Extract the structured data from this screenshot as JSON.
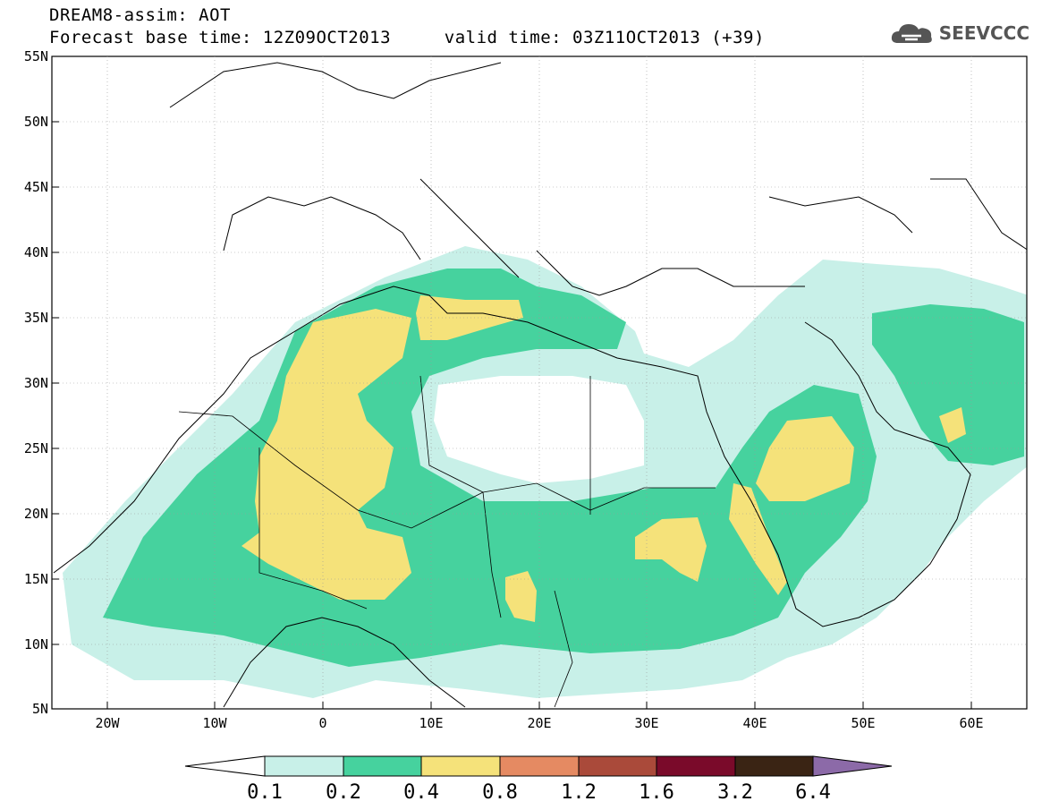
{
  "header": {
    "title": "DREAM8-assim: AOT",
    "base_time_label": "Forecast base time: 12Z09OCT2013",
    "valid_time_label": "valid time: 03Z11OCT2013 (+39)"
  },
  "logo": {
    "text": "SEEVCCC",
    "icon": "cloud-icon"
  },
  "map": {
    "lat_labels": [
      "55N",
      "50N",
      "45N",
      "40N",
      "35N",
      "30N",
      "25N",
      "20N",
      "15N",
      "10N",
      "5N"
    ],
    "lon_labels": [
      "20W",
      "10W",
      "0",
      "10E",
      "20E",
      "30E",
      "40E",
      "50E",
      "60E"
    ],
    "lon_range": [
      -25,
      65
    ],
    "lat_range": [
      5,
      55
    ]
  },
  "legend": {
    "levels": [
      "0.1",
      "0.2",
      "0.4",
      "0.8",
      "1.2",
      "1.6",
      "3.2",
      "6.4"
    ],
    "colors": [
      "#ffffff",
      "#c8f0e8",
      "#46d29e",
      "#f5e27a",
      "#e58a62",
      "#aa4a3a",
      "#7a0a2a",
      "#3a2414",
      "#8c6aa8"
    ]
  }
}
